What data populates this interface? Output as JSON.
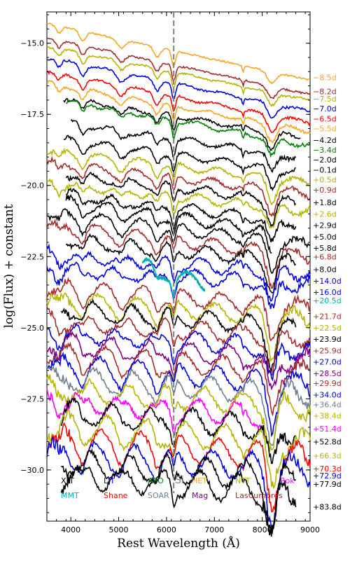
{
  "chart_data": {
    "type": "line",
    "xlabel": "Rest Wavelength (Å)",
    "ylabel": "log(Flux) + constant",
    "xlim": [
      3500,
      9000
    ],
    "ylim": [
      -31.8,
      -13.9
    ],
    "xticks": [
      4000,
      5000,
      6000,
      7000,
      8000,
      9000
    ],
    "xtick_labels": [
      "4000",
      "5000",
      "6000",
      "7000",
      "8000",
      "9000"
    ],
    "yticks": [
      -15.0,
      -17.5,
      -20.0,
      -22.5,
      -25.0,
      -27.5,
      -30.0
    ],
    "ytick_labels": [
      "−15.0",
      "−17.5",
      "−20.0",
      "−22.5",
      "−25.0",
      "−27.5",
      "−30.0"
    ],
    "annotation": {
      "text": "Si",
      "x": 6150,
      "color": "#808080"
    },
    "grid": false,
    "series": [
      {
        "name": "−8.5d",
        "color": "#f5a623",
        "x_start": 3500,
        "x_end": 9000,
        "y_start": -14.3,
        "y_end": -16.3,
        "label_y": -16.2
      },
      {
        "name": "−8.2d",
        "color": "#a52a2a",
        "x_start": 3500,
        "x_end": 9000,
        "y_start": -14.8,
        "y_end": -16.8,
        "label_y": -16.7
      },
      {
        "name": "−7.5d",
        "color": "#b5b500",
        "x_start": 3500,
        "x_end": 9000,
        "y_start": -15.1,
        "y_end": -17.0,
        "label_y": -16.95
      },
      {
        "name": "−7.0d",
        "color": "#0000e0",
        "x_start": 3500,
        "x_end": 9000,
        "y_start": -15.5,
        "y_end": -17.4,
        "label_y": -17.3
      },
      {
        "name": "−6.5d",
        "color": "#ff0000",
        "x_start": 3500,
        "x_end": 9000,
        "y_start": -16.0,
        "y_end": -17.8,
        "label_y": -17.65
      },
      {
        "name": "−5.5d",
        "color": "#f5a623",
        "x_start": 3500,
        "x_end": 9000,
        "y_start": -16.4,
        "y_end": -18.1,
        "label_y": -18.0
      },
      {
        "name": "−4.2d",
        "color": "#000000",
        "x_start": 3850,
        "x_end": 8800,
        "y_start": -16.9,
        "y_end": -18.3,
        "label_y": -18.4
      },
      {
        "name": "−3.4d",
        "color": "#008000",
        "x_start": 3900,
        "x_end": 9000,
        "y_start": -17.0,
        "y_end": -18.6,
        "label_y": -18.75
      },
      {
        "name": "−2.0d",
        "color": "#000000",
        "x_start": 4000,
        "x_end": 8700,
        "y_start": -17.8,
        "y_end": -19.0,
        "label_y": -19.1
      },
      {
        "name": "−0.1d",
        "color": "#000000",
        "x_start": 3850,
        "x_end": 8700,
        "y_start": -18.4,
        "y_end": -19.5,
        "label_y": -19.45
      },
      {
        "name": "+0.5d",
        "color": "#b5b500",
        "x_start": 3500,
        "x_end": 9000,
        "y_start": -18.8,
        "y_end": -19.9,
        "label_y": -19.8
      },
      {
        "name": "+0.9d",
        "color": "#a52a2a",
        "x_start": 3500,
        "x_end": 9000,
        "y_start": -19.2,
        "y_end": -20.3,
        "label_y": -20.15
      },
      {
        "name": "+1.8d",
        "color": "#000000",
        "x_start": 3900,
        "x_end": 8700,
        "y_start": -19.6,
        "y_end": -20.6,
        "label_y": -20.6
      },
      {
        "name": "+2.6d",
        "color": "#b5b500",
        "x_start": 3500,
        "x_end": 9000,
        "y_start": -19.9,
        "y_end": -20.9,
        "label_y": -21.0
      },
      {
        "name": "+2.9d",
        "color": "#000000",
        "x_start": 3900,
        "x_end": 8700,
        "y_start": -20.3,
        "y_end": -21.3,
        "label_y": -21.4
      },
      {
        "name": "+5.0d",
        "color": "#000000",
        "x_start": 3900,
        "x_end": 8200,
        "y_start": -20.6,
        "y_end": -21.6,
        "label_y": -21.8
      },
      {
        "name": "+5.8d",
        "color": "#000000",
        "x_start": 3500,
        "x_end": 9000,
        "y_start": -21.0,
        "y_end": -22.1,
        "label_y": -22.2
      },
      {
        "name": "+6.8d",
        "color": "#a52a2a",
        "x_start": 3500,
        "x_end": 9000,
        "y_start": -21.4,
        "y_end": -22.5,
        "label_y": -22.5
      },
      {
        "name": "+8.0d",
        "color": "#000000",
        "x_start": 3900,
        "x_end": 8700,
        "y_start": -21.9,
        "y_end": -22.7,
        "label_y": -22.95
      },
      {
        "name": "+14.0d",
        "color": "#0000e0",
        "x_start": 3500,
        "x_end": 9000,
        "y_start": -22.4,
        "y_end": -23.1,
        "label_y": -23.35
      },
      {
        "name": "+16.0d",
        "color": "#0000e0",
        "x_start": 3500,
        "x_end": 9000,
        "y_start": -22.9,
        "y_end": -23.5,
        "label_y": -23.75
      },
      {
        "name": "+20.5d",
        "color": "#00b0b0",
        "x_start": 5500,
        "x_end": 6800,
        "y_start": -22.8,
        "y_end": -23.5,
        "label_y": -24.05
      },
      {
        "name": "+21.7d",
        "color": "#a52a2a",
        "x_start": 3500,
        "x_end": 9000,
        "y_start": -23.6,
        "y_end": -24.3,
        "label_y": -24.6
      },
      {
        "name": "+22.5d",
        "color": "#b5b500",
        "x_start": 3500,
        "x_end": 9000,
        "y_start": -24.0,
        "y_end": -24.7,
        "label_y": -25.0
      },
      {
        "name": "+23.9d",
        "color": "#000000",
        "x_start": 3800,
        "x_end": 8700,
        "y_start": -24.3,
        "y_end": -25.0,
        "label_y": -25.4
      },
      {
        "name": "+25.9d",
        "color": "#a52a2a",
        "x_start": 3500,
        "x_end": 9000,
        "y_start": -24.7,
        "y_end": -25.4,
        "label_y": -25.8
      },
      {
        "name": "+27.0d",
        "color": "#0000e0",
        "x_start": 3500,
        "x_end": 9000,
        "y_start": -25.1,
        "y_end": -25.8,
        "label_y": -26.2
      },
      {
        "name": "+28.5d",
        "color": "#800080",
        "x_start": 3500,
        "x_end": 9000,
        "y_start": -25.5,
        "y_end": -26.2,
        "label_y": -26.6
      },
      {
        "name": "+29.9d",
        "color": "#a52a2a",
        "x_start": 3500,
        "x_end": 9000,
        "y_start": -25.9,
        "y_end": -26.6,
        "label_y": -26.95
      },
      {
        "name": "+34.0d",
        "color": "#0000e0",
        "x_start": 3500,
        "x_end": 9000,
        "y_start": -26.3,
        "y_end": -27.0,
        "label_y": -27.35
      },
      {
        "name": "+36.4d",
        "color": "#708090",
        "x_start": 3500,
        "x_end": 9000,
        "y_start": -26.7,
        "y_end": -27.4,
        "label_y": -27.7
      },
      {
        "name": "+38.4d",
        "color": "#b5b500",
        "x_start": 3500,
        "x_end": 9000,
        "y_start": -27.1,
        "y_end": -27.8,
        "label_y": -28.1
      },
      {
        "name": "+51.4d",
        "color": "#ff00ff",
        "x_start": 3500,
        "x_end": 8000,
        "y_start": -27.5,
        "y_end": -28.1,
        "label_y": -28.55
      },
      {
        "name": "+52.8d",
        "color": "#000000",
        "x_start": 3800,
        "x_end": 8700,
        "y_start": -27.9,
        "y_end": -28.6,
        "label_y": -29.0
      },
      {
        "name": "+66.3d",
        "color": "#b5b500",
        "x_start": 3500,
        "x_end": 9000,
        "y_start": -28.4,
        "y_end": -29.1,
        "label_y": -29.5
      },
      {
        "name": "+70.3d",
        "color": "#ff0000",
        "x_start": 3500,
        "x_end": 9000,
        "y_start": -28.9,
        "y_end": -29.6,
        "label_y": -29.95
      },
      {
        "name": "+72.9d",
        "color": "#0000e0",
        "x_start": 3500,
        "x_end": 9000,
        "y_start": -29.4,
        "y_end": -30.0,
        "label_y": -30.2
      },
      {
        "name": "+77.9d",
        "color": "#000000",
        "x_start": 3800,
        "x_end": 8700,
        "y_start": -29.7,
        "y_end": -30.3,
        "label_y": -30.5
      },
      {
        "name": "+83.8d",
        "color": "#000000",
        "x_start": 3800,
        "x_end": 8700,
        "y_start": -30.1,
        "y_end": -30.8,
        "label_y": -31.3
      }
    ],
    "legend": {
      "placement": "bottom",
      "rows": [
        [
          {
            "label": "XLT",
            "color": "#000000"
          },
          {
            "label": "LJT",
            "color": "#0000e0"
          },
          {
            "label": "APO",
            "color": "#008000"
          },
          {
            "label": "HET",
            "color": "#f5a623"
          },
          {
            "label": "NTT",
            "color": "#b5b500"
          },
          {
            "label": "Bok",
            "color": "#ff00ff"
          }
        ],
        [
          {
            "label": "MMT",
            "color": "#00b0b0"
          },
          {
            "label": "Shane",
            "color": "#ff0000"
          },
          {
            "label": "SOAR",
            "color": "#708090"
          },
          {
            "label": "Mag",
            "color": "#800080"
          },
          {
            "label": "LasCumbres",
            "color": "#a52a2a"
          }
        ]
      ]
    }
  }
}
